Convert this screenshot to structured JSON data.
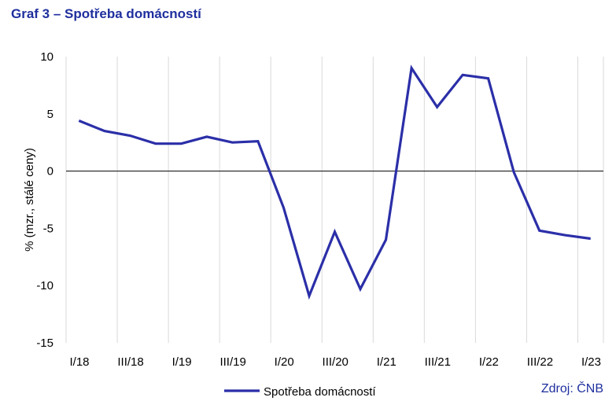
{
  "title": "Graf 3 – Spotřeba domácností",
  "source": "Zdroj: ČNB",
  "chart_data": {
    "type": "line",
    "ylabel": "% (mzr., stálé ceny)",
    "ylim": [
      -15,
      10
    ],
    "yticks": [
      10,
      5,
      0,
      -5,
      -10,
      -15
    ],
    "grid": "vertical",
    "legend_position": "bottom",
    "x": [
      "I/18",
      "II/18",
      "III/18",
      "IV/18",
      "I/19",
      "II/19",
      "III/19",
      "IV/19",
      "I/20",
      "II/20",
      "III/20",
      "IV/20",
      "I/21",
      "II/21",
      "III/21",
      "IV/21",
      "I/22",
      "II/22",
      "III/22",
      "IV/22",
      "I/23"
    ],
    "xtick_labels": [
      "I/18",
      "III/18",
      "I/19",
      "III/19",
      "I/20",
      "III/20",
      "I/21",
      "III/21",
      "I/22",
      "III/22",
      "I/23"
    ],
    "series": [
      {
        "name": "Spotřeba domácností",
        "color": "#2b2fa8",
        "values": [
          4.4,
          3.5,
          3.1,
          2.4,
          2.4,
          3.0,
          2.5,
          2.6,
          -3.2,
          -10.9,
          -5.3,
          -10.3,
          -6.0,
          9.0,
          5.6,
          8.4,
          8.1,
          -0.1,
          -5.2,
          -5.6,
          -5.9
        ]
      }
    ]
  }
}
